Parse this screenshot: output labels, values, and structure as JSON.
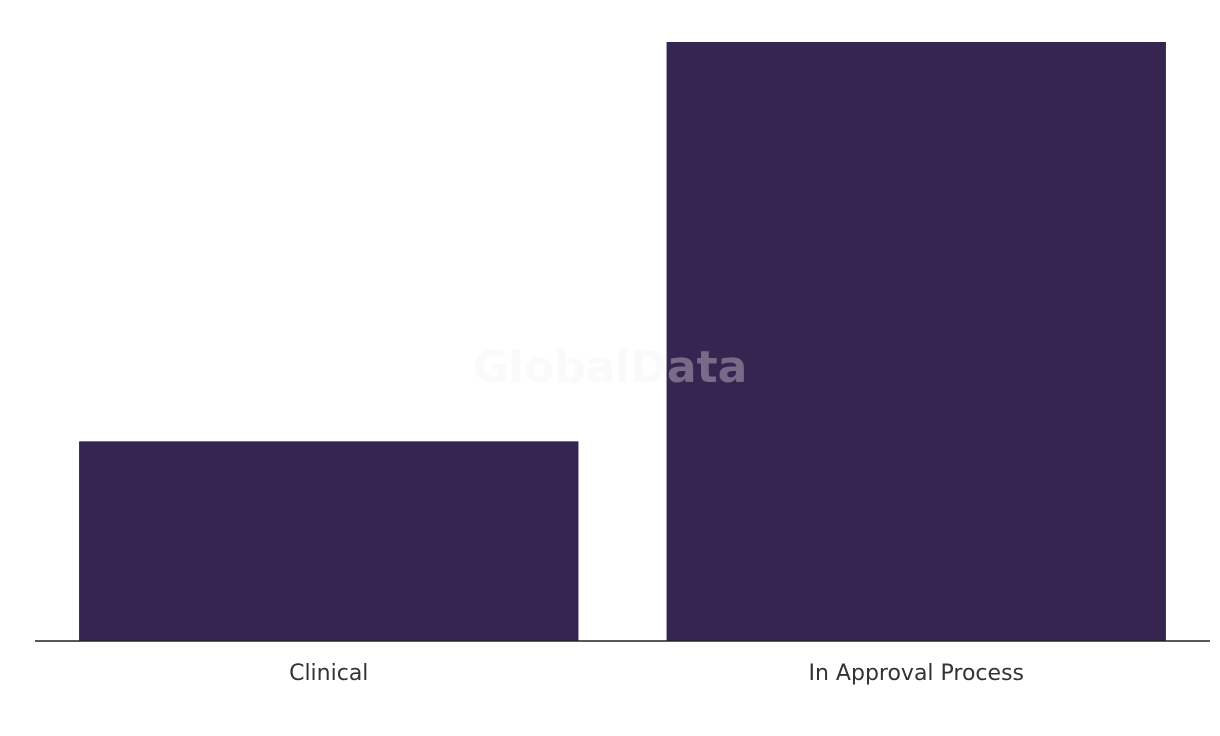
{
  "chart_data": {
    "type": "bar",
    "watermark": "GlobalData",
    "categories": [
      "Clinical",
      "In Approval Process"
    ],
    "values": [
      1,
      3
    ],
    "color": "#362451",
    "ylim": [
      0,
      3
    ]
  }
}
